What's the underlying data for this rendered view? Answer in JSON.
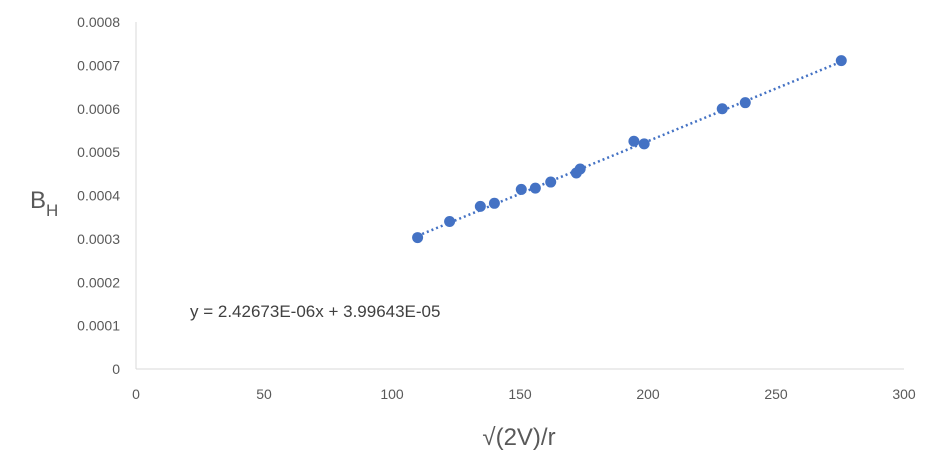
{
  "chart_data": {
    "type": "scatter",
    "xlabel": "√(2V)/r",
    "ylabel": {
      "main": "B",
      "subscript": "H"
    },
    "xlim": [
      0,
      300
    ],
    "ylim": [
      0,
      0.0008
    ],
    "x_ticks": [
      0,
      50,
      100,
      150,
      200,
      250,
      300
    ],
    "y_ticks": [
      "0",
      "0.0001",
      "0.0002",
      "0.0003",
      "0.0004",
      "0.0005",
      "0.0006",
      "0.0007",
      "0.0008"
    ],
    "grid": false,
    "legend": "none",
    "series": [
      {
        "color": "#4472C4",
        "points": [
          [
            110,
            0.000303
          ],
          [
            122.5,
            0.00034
          ],
          [
            134.5,
            0.000375
          ],
          [
            140,
            0.000382
          ],
          [
            150.5,
            0.000414
          ],
          [
            156,
            0.000417
          ],
          [
            162,
            0.000431
          ],
          [
            172,
            0.000452
          ],
          [
            173.5,
            0.000461
          ],
          [
            194.5,
            0.000525
          ],
          [
            198.5,
            0.000519
          ],
          [
            229,
            0.0006
          ],
          [
            238,
            0.000614
          ],
          [
            275.5,
            0.000711
          ]
        ]
      }
    ],
    "trendline": {
      "type": "linear",
      "slope": 2.42673e-06,
      "intercept": 3.99643e-05,
      "x_range": [
        110,
        275.5
      ],
      "style": "dotted",
      "color": "#4472C4",
      "equation_label": "y = 2.42673E-06x + 3.99643E-05"
    },
    "axis_color": "#D9D9D9"
  }
}
